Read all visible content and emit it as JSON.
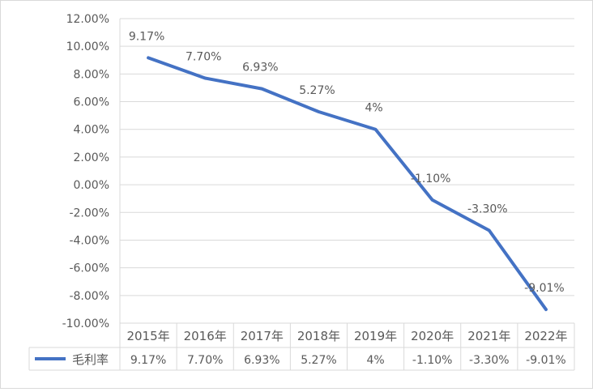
{
  "chart_data": {
    "type": "line",
    "categories": [
      "2015年",
      "2016年",
      "2017年",
      "2018年",
      "2019年",
      "2020年",
      "2021年",
      "2022年"
    ],
    "series": [
      {
        "name": "毛利率",
        "values": [
          9.17,
          7.7,
          6.93,
          5.27,
          4.0,
          -1.1,
          -3.3,
          -9.01
        ],
        "labels": [
          "9.17%",
          "7.70%",
          "6.93%",
          "5.27%",
          "4%",
          "-1.10%",
          "-3.30%",
          "-9.01%"
        ],
        "color": "#4472c4"
      }
    ],
    "y_ticks": [
      "12.00%",
      "10.00%",
      "8.00%",
      "6.00%",
      "4.00%",
      "2.00%",
      "0.00%",
      "-2.00%",
      "-4.00%",
      "-6.00%",
      "-8.00%",
      "-10.00%"
    ],
    "ylim": [
      -10,
      12
    ],
    "grid": true,
    "legend": "data-table",
    "title": "",
    "xlabel": "",
    "ylabel": ""
  }
}
